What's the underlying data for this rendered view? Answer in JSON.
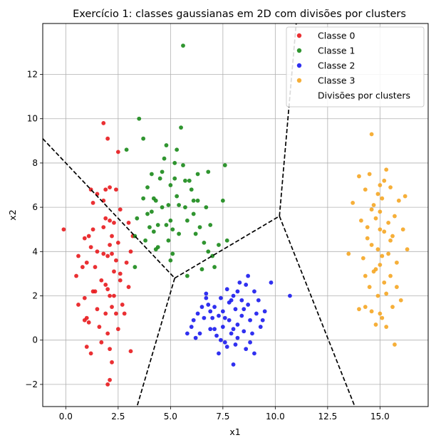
{
  "chart_data": {
    "type": "scatter",
    "title": "Exercício 1: classes gaussianas em 2D com divisões por clusters",
    "xlabel": "x1",
    "ylabel": "x2",
    "xlim": [
      -1.1,
      17.3
    ],
    "ylim": [
      -3.0,
      14.3
    ],
    "grid": true,
    "legend_position": "top-right",
    "x_ticks": [
      0.0,
      2.5,
      5.0,
      7.5,
      10.0,
      12.5,
      15.0
    ],
    "x_tick_labels": [
      "0.0",
      "2.5",
      "5.0",
      "7.5",
      "10.0",
      "12.5",
      "15.0"
    ],
    "y_ticks": [
      -2,
      0,
      2,
      4,
      6,
      8,
      10,
      12
    ],
    "y_tick_labels": [
      "−2",
      "0",
      "2",
      "4",
      "6",
      "8",
      "10",
      "12"
    ],
    "series": [
      {
        "name": "Classe 0",
        "color": "#e8191d",
        "points": [
          [
            -0.1,
            5.0
          ],
          [
            0.5,
            2.9
          ],
          [
            0.6,
            3.8
          ],
          [
            0.8,
            3.3
          ],
          [
            0.9,
            4.6
          ],
          [
            1.0,
            3.5
          ],
          [
            0.6,
            1.6
          ],
          [
            0.9,
            1.9
          ],
          [
            1.1,
            0.8
          ],
          [
            0.9,
            0.9
          ],
          [
            1.0,
            -0.3
          ],
          [
            1.2,
            -0.6
          ],
          [
            1.2,
            6.8
          ],
          [
            1.3,
            6.2
          ],
          [
            1.5,
            6.6
          ],
          [
            1.2,
            4.2
          ],
          [
            1.1,
            4.7
          ],
          [
            1.3,
            5.0
          ],
          [
            1.4,
            3.3
          ],
          [
            1.3,
            2.2
          ],
          [
            1.4,
            2.2
          ],
          [
            1.5,
            1.4
          ],
          [
            1.6,
            0.6
          ],
          [
            1.7,
            -0.1
          ],
          [
            1.8,
            9.8
          ],
          [
            1.9,
            6.8
          ],
          [
            1.8,
            6.3
          ],
          [
            1.8,
            5.1
          ],
          [
            1.9,
            5.5
          ],
          [
            1.8,
            3.9
          ],
          [
            2.0,
            3.8
          ],
          [
            2.1,
            4.3
          ],
          [
            1.9,
            2.5
          ],
          [
            2.0,
            2.3
          ],
          [
            2.1,
            2.0
          ],
          [
            2.2,
            1.5
          ],
          [
            1.9,
            1.2
          ],
          [
            2.0,
            0.3
          ],
          [
            2.1,
            -0.4
          ],
          [
            2.0,
            9.1
          ],
          [
            2.1,
            6.9
          ],
          [
            2.1,
            5.4
          ],
          [
            2.3,
            5.3
          ],
          [
            2.2,
            4.7
          ],
          [
            2.3,
            3.1
          ],
          [
            2.4,
            3.6
          ],
          [
            2.3,
            2.0
          ],
          [
            2.4,
            1.2
          ],
          [
            2.5,
            0.5
          ],
          [
            2.2,
            -1.0
          ],
          [
            2.1,
            -1.8
          ],
          [
            2.0,
            -2.0
          ],
          [
            2.5,
            8.5
          ],
          [
            2.4,
            6.8
          ],
          [
            2.6,
            5.9
          ],
          [
            2.5,
            4.4
          ],
          [
            2.6,
            3.0
          ],
          [
            2.7,
            1.6
          ],
          [
            2.8,
            1.2
          ],
          [
            2.9,
            3.5
          ],
          [
            3.0,
            2.4
          ],
          [
            3.1,
            4.0
          ],
          [
            3.2,
            4.7
          ],
          [
            3.0,
            5.3
          ],
          [
            3.1,
            -0.5
          ],
          [
            1.5,
            4.0
          ],
          [
            2.2,
            3.9
          ],
          [
            1.7,
            2.7
          ],
          [
            2.6,
            2.7
          ],
          [
            1.0,
            1.0
          ]
        ]
      },
      {
        "name": "Classe 1",
        "color": "#1a8a1a",
        "points": [
          [
            2.9,
            8.6
          ],
          [
            3.3,
            4.7
          ],
          [
            3.5,
            10.0
          ],
          [
            3.3,
            3.3
          ],
          [
            3.4,
            5.5
          ],
          [
            3.7,
            6.4
          ],
          [
            3.8,
            4.5
          ],
          [
            3.9,
            6.9
          ],
          [
            4.0,
            5.1
          ],
          [
            4.1,
            7.5
          ],
          [
            4.1,
            5.8
          ],
          [
            4.2,
            6.4
          ],
          [
            4.3,
            6.3
          ],
          [
            4.4,
            5.2
          ],
          [
            4.4,
            4.2
          ],
          [
            4.5,
            7.3
          ],
          [
            4.6,
            6.0
          ],
          [
            4.7,
            8.2
          ],
          [
            4.8,
            8.8
          ],
          [
            4.8,
            5.2
          ],
          [
            4.9,
            6.1
          ],
          [
            4.9,
            4.5
          ],
          [
            5.0,
            7.0
          ],
          [
            5.0,
            5.4
          ],
          [
            5.1,
            3.9
          ],
          [
            5.2,
            8.0
          ],
          [
            5.2,
            7.3
          ],
          [
            5.3,
            6.5
          ],
          [
            5.4,
            6.1
          ],
          [
            5.4,
            4.8
          ],
          [
            5.5,
            9.6
          ],
          [
            5.6,
            13.3
          ],
          [
            5.6,
            7.9
          ],
          [
            5.7,
            7.2
          ],
          [
            5.7,
            6.0
          ],
          [
            5.8,
            5.4
          ],
          [
            5.9,
            7.2
          ],
          [
            6.0,
            6.8
          ],
          [
            6.1,
            5.7
          ],
          [
            6.2,
            4.8
          ],
          [
            6.3,
            7.5
          ],
          [
            6.3,
            6.3
          ],
          [
            6.4,
            5.1
          ],
          [
            6.5,
            3.2
          ],
          [
            6.6,
            4.4
          ],
          [
            6.7,
            6.0
          ],
          [
            6.8,
            7.6
          ],
          [
            6.9,
            5.2
          ],
          [
            7.0,
            3.8
          ],
          [
            7.1,
            3.3
          ],
          [
            7.3,
            4.3
          ],
          [
            7.5,
            6.3
          ],
          [
            7.6,
            7.9
          ],
          [
            7.7,
            4.5
          ],
          [
            3.7,
            9.1
          ],
          [
            5.8,
            2.9
          ],
          [
            4.3,
            4.1
          ],
          [
            5.0,
            3.6
          ],
          [
            3.9,
            5.7
          ],
          [
            6.1,
            6.3
          ],
          [
            4.6,
            7.6
          ],
          [
            5.3,
            8.6
          ],
          [
            4.2,
            4.9
          ],
          [
            5.1,
            5.0
          ],
          [
            6.8,
            4.0
          ]
        ]
      },
      {
        "name": "Classe 2",
        "color": "#1a1aee",
        "points": [
          [
            5.8,
            0.3
          ],
          [
            6.0,
            0.6
          ],
          [
            6.1,
            0.9
          ],
          [
            6.3,
            1.2
          ],
          [
            6.2,
            0.1
          ],
          [
            6.5,
            1.5
          ],
          [
            6.6,
            1.0
          ],
          [
            6.7,
            2.1
          ],
          [
            6.8,
            1.6
          ],
          [
            6.9,
            0.5
          ],
          [
            7.0,
            1.0
          ],
          [
            7.1,
            1.5
          ],
          [
            7.2,
            0.2
          ],
          [
            7.3,
            -0.6
          ],
          [
            7.4,
            1.9
          ],
          [
            7.5,
            1.3
          ],
          [
            7.5,
            0.6
          ],
          [
            7.6,
            -0.1
          ],
          [
            7.7,
            2.3
          ],
          [
            7.8,
            1.7
          ],
          [
            7.8,
            0.9
          ],
          [
            7.9,
            0.3
          ],
          [
            8.0,
            -1.1
          ],
          [
            8.0,
            2.0
          ],
          [
            8.1,
            1.4
          ],
          [
            8.2,
            0.7
          ],
          [
            8.2,
            0.1
          ],
          [
            8.3,
            2.6
          ],
          [
            8.4,
            1.8
          ],
          [
            8.4,
            1.1
          ],
          [
            8.5,
            0.4
          ],
          [
            8.6,
            -0.4
          ],
          [
            8.7,
            2.9
          ],
          [
            8.7,
            1.6
          ],
          [
            8.8,
            0.9
          ],
          [
            8.9,
            0.3
          ],
          [
            9.0,
            -0.6
          ],
          [
            9.1,
            1.2
          ],
          [
            9.2,
            1.8
          ],
          [
            9.3,
            0.6
          ],
          [
            9.5,
            1.3
          ],
          [
            9.8,
            2.6
          ],
          [
            10.7,
            2.0
          ],
          [
            6.7,
            1.9
          ],
          [
            7.1,
            0.5
          ],
          [
            7.6,
            1.0
          ],
          [
            8.0,
            0.5
          ],
          [
            8.5,
            1.4
          ],
          [
            9.0,
            2.2
          ],
          [
            7.3,
            1.1
          ],
          [
            8.8,
            -0.1
          ],
          [
            7.9,
            1.8
          ],
          [
            8.2,
            2.2
          ],
          [
            6.4,
            0.3
          ],
          [
            8.6,
            2.5
          ],
          [
            9.4,
            0.9
          ],
          [
            7.4,
            0.0
          ],
          [
            8.1,
            -0.2
          ],
          [
            6.9,
            1.3
          ],
          [
            7.7,
            -0.3
          ]
        ]
      },
      {
        "name": "Classe 3",
        "color": "#f5a623",
        "points": [
          [
            13.5,
            3.9
          ],
          [
            13.7,
            6.2
          ],
          [
            14.0,
            7.4
          ],
          [
            14.1,
            5.4
          ],
          [
            14.2,
            3.7
          ],
          [
            14.3,
            1.5
          ],
          [
            14.3,
            6.8
          ],
          [
            14.4,
            5.1
          ],
          [
            14.5,
            2.4
          ],
          [
            14.5,
            7.5
          ],
          [
            14.6,
            9.3
          ],
          [
            14.6,
            4.3
          ],
          [
            14.6,
            1.3
          ],
          [
            14.7,
            6.1
          ],
          [
            14.7,
            3.1
          ],
          [
            14.8,
            5.5
          ],
          [
            14.8,
            0.7
          ],
          [
            14.9,
            4.1
          ],
          [
            14.9,
            2.0
          ],
          [
            15.0,
            7.0
          ],
          [
            15.0,
            5.8
          ],
          [
            15.0,
            3.4
          ],
          [
            15.1,
            1.0
          ],
          [
            15.1,
            6.4
          ],
          [
            15.2,
            4.9
          ],
          [
            15.2,
            2.6
          ],
          [
            15.3,
            7.7
          ],
          [
            15.3,
            0.6
          ],
          [
            15.4,
            5.3
          ],
          [
            15.4,
            3.9
          ],
          [
            15.5,
            6.9
          ],
          [
            15.5,
            2.9
          ],
          [
            15.6,
            4.7
          ],
          [
            15.6,
            1.5
          ],
          [
            15.7,
            -0.2
          ],
          [
            15.8,
            3.5
          ],
          [
            15.9,
            6.3
          ],
          [
            16.0,
            1.8
          ],
          [
            16.1,
            5.0
          ],
          [
            16.3,
            4.1
          ],
          [
            16.2,
            6.5
          ],
          [
            15.8,
            2.4
          ],
          [
            14.0,
            1.4
          ],
          [
            14.4,
            4.6
          ],
          [
            15.0,
            5.0
          ],
          [
            15.5,
            4.5
          ],
          [
            14.8,
            3.2
          ],
          [
            15.2,
            7.2
          ],
          [
            14.6,
            5.9
          ],
          [
            15.3,
            2.1
          ],
          [
            15.0,
            1.2
          ],
          [
            14.3,
            2.9
          ],
          [
            15.7,
            5.6
          ],
          [
            14.9,
            6.6
          ],
          [
            15.1,
            3.8
          ]
        ]
      },
      {
        "name": "Divisões por clusters",
        "color": "#000000",
        "style": "dashed",
        "segments": [
          [
            [
              -1.1,
              9.1
            ],
            [
              5.2,
              2.8
            ]
          ],
          [
            [
              5.2,
              2.8
            ],
            [
              10.2,
              5.6
            ]
          ],
          [
            [
              10.2,
              5.6
            ],
            [
              11.0,
              14.3
            ]
          ],
          [
            [
              5.2,
              2.8
            ],
            [
              3.4,
              -3.0
            ]
          ],
          [
            [
              10.2,
              5.6
            ],
            [
              13.8,
              -3.0
            ]
          ]
        ]
      }
    ]
  }
}
